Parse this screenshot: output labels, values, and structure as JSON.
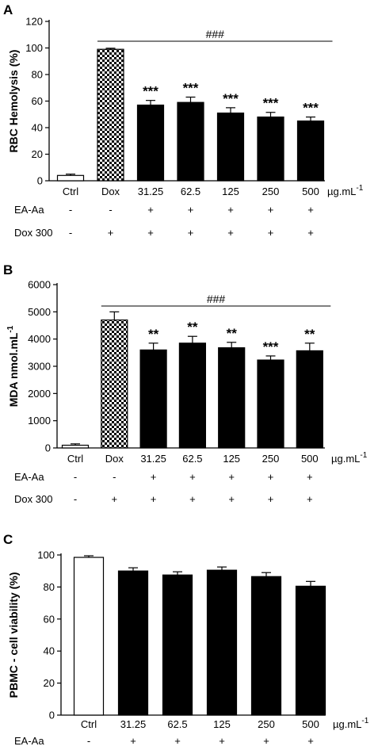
{
  "colors": {
    "bar_black": "#000000",
    "bar_white": "#ffffff",
    "dox_pattern": "checkerboard"
  },
  "chart_data": [
    {
      "panel": "A",
      "type": "bar",
      "ylabel": "RBC Hemolysis (%)",
      "ylim": [
        0,
        120
      ],
      "yticks": [
        "0",
        "20",
        "40",
        "60",
        "80",
        "100",
        "120"
      ],
      "categories": [
        "Ctrl",
        "Dox",
        "31.25",
        "62.5",
        "125",
        "250",
        "500"
      ],
      "unit_label": "µg.mL",
      "unit_exp": "-1",
      "values": [
        4,
        99,
        57,
        59,
        51,
        48,
        45
      ],
      "errors": [
        1,
        0.8,
        3.5,
        4,
        4,
        3.5,
        3
      ],
      "fills": [
        "white",
        "pattern",
        "black",
        "black",
        "black",
        "black",
        "black"
      ],
      "significance": [
        "",
        "",
        "***",
        "***",
        "***",
        "***",
        "***"
      ],
      "bracket_label": "###",
      "rows": [
        {
          "label": "EA-Aa",
          "signs": [
            "-",
            "-",
            "+",
            "+",
            "+",
            "+",
            "+"
          ]
        },
        {
          "label": "Dox 300",
          "signs": [
            "-",
            "+",
            "+",
            "+",
            "+",
            "+",
            "+"
          ]
        }
      ]
    },
    {
      "panel": "B",
      "type": "bar",
      "ylabel": "MDA nmol.mL",
      "ylabel_exp": "-1",
      "ylim": [
        0,
        6000
      ],
      "yticks": [
        "0",
        "1000",
        "2000",
        "3000",
        "4000",
        "5000",
        "6000"
      ],
      "categories": [
        "Ctrl",
        "Dox",
        "31.25",
        "62.5",
        "125",
        "250",
        "500"
      ],
      "unit_label": "µg.mL",
      "unit_exp": "-1",
      "values": [
        100,
        4700,
        3600,
        3850,
        3680,
        3230,
        3570
      ],
      "errors": [
        50,
        300,
        250,
        250,
        200,
        150,
        280
      ],
      "fills": [
        "white",
        "pattern",
        "black",
        "black",
        "black",
        "black",
        "black"
      ],
      "significance": [
        "",
        "",
        "**",
        "**",
        "**",
        "***",
        "**"
      ],
      "bracket_label": "###",
      "rows": [
        {
          "label": "EA-Aa",
          "signs": [
            "-",
            "-",
            "+",
            "+",
            "+",
            "+",
            "+"
          ]
        },
        {
          "label": "Dox 300",
          "signs": [
            "-",
            "+",
            "+",
            "+",
            "+",
            "+",
            "+"
          ]
        }
      ]
    },
    {
      "panel": "C",
      "type": "bar",
      "ylabel": "PBMC - cell viability (%)",
      "ylim": [
        0,
        100
      ],
      "yticks": [
        "0",
        "20",
        "40",
        "60",
        "80",
        "100"
      ],
      "categories": [
        "Ctrl",
        "31.25",
        "62.5",
        "125",
        "250",
        "500"
      ],
      "unit_label": "µg.mL",
      "unit_exp": "-1",
      "values": [
        98.5,
        90,
        87.5,
        90.5,
        86.5,
        80.5
      ],
      "errors": [
        1,
        2,
        2,
        2,
        2.5,
        3
      ],
      "fills": [
        "white",
        "black",
        "black",
        "black",
        "black",
        "black"
      ],
      "significance": [
        "",
        "",
        "",
        "",
        "",
        ""
      ],
      "bracket_label": "",
      "rows": [
        {
          "label": "EA-Aa",
          "signs": [
            "-",
            "+",
            "+",
            "+",
            "+",
            "+"
          ]
        }
      ]
    }
  ]
}
